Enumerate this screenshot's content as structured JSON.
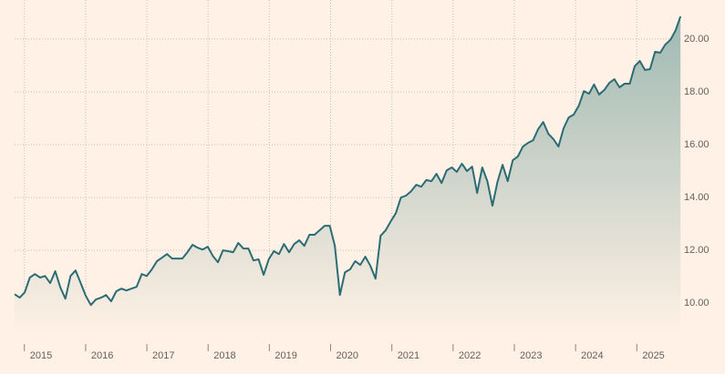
{
  "chart_data": {
    "type": "area",
    "color": "#2b6c74",
    "grid": true,
    "x": [
      2014.84,
      2014.923,
      2015.006,
      2015.089,
      2015.172,
      2015.255,
      2015.338,
      2015.421,
      2015.504,
      2015.587,
      2015.67,
      2015.753,
      2015.836,
      2015.919,
      2016.002,
      2016.085,
      2016.168,
      2016.251,
      2016.334,
      2016.417,
      2016.5,
      2016.583,
      2016.666,
      2016.749,
      2016.832,
      2016.915,
      2016.998,
      2017.081,
      2017.164,
      2017.247,
      2017.33,
      2017.413,
      2017.496,
      2017.579,
      2017.662,
      2017.745,
      2017.828,
      2017.911,
      2017.994,
      2018.077,
      2018.16,
      2018.243,
      2018.326,
      2018.409,
      2018.492,
      2018.575,
      2018.658,
      2018.741,
      2018.824,
      2018.907,
      2018.99,
      2019.073,
      2019.156,
      2019.239,
      2019.322,
      2019.405,
      2019.488,
      2019.571,
      2019.654,
      2019.737,
      2019.82,
      2019.903,
      2019.986,
      2020.069,
      2020.152,
      2020.235,
      2020.318,
      2020.401,
      2020.484,
      2020.567,
      2020.65,
      2020.733,
      2020.816,
      2020.899,
      2020.982,
      2021.065,
      2021.148,
      2021.231,
      2021.314,
      2021.397,
      2021.48,
      2021.563,
      2021.646,
      2021.729,
      2021.812,
      2021.895,
      2021.978,
      2022.061,
      2022.144,
      2022.227,
      2022.31,
      2022.393,
      2022.476,
      2022.559,
      2022.642,
      2022.725,
      2022.808,
      2022.891,
      2022.974,
      2023.057,
      2023.14,
      2023.223,
      2023.306,
      2023.389,
      2023.472,
      2023.555,
      2023.638,
      2023.721,
      2023.804,
      2023.887,
      2023.97,
      2024.053,
      2024.136,
      2024.219,
      2024.302,
      2024.385,
      2024.468,
      2024.551,
      2024.634,
      2024.717,
      2024.8,
      2024.883,
      2024.966,
      2025.049,
      2025.132,
      2025.215,
      2025.298,
      2025.381,
      2025.464,
      2025.547,
      2025.63,
      2025.713
    ],
    "values": [
      10.34,
      10.21,
      10.41,
      10.97,
      11.1,
      10.97,
      11.03,
      10.76,
      11.21,
      10.59,
      10.17,
      11.03,
      11.24,
      10.76,
      10.28,
      9.93,
      10.14,
      10.21,
      10.31,
      10.07,
      10.45,
      10.55,
      10.48,
      10.55,
      10.62,
      11.1,
      11.03,
      11.28,
      11.59,
      11.72,
      11.86,
      11.69,
      11.69,
      11.69,
      11.93,
      12.21,
      12.1,
      12.03,
      12.14,
      11.79,
      11.55,
      12.0,
      11.97,
      11.93,
      12.28,
      12.07,
      12.07,
      11.62,
      11.66,
      11.07,
      11.66,
      11.97,
      11.86,
      12.24,
      11.93,
      12.24,
      12.38,
      12.17,
      12.59,
      12.59,
      12.76,
      12.93,
      12.93,
      12.17,
      10.31,
      11.17,
      11.28,
      11.59,
      11.45,
      11.76,
      11.41,
      10.93,
      12.55,
      12.76,
      13.1,
      13.41,
      14.0,
      14.07,
      14.24,
      14.48,
      14.41,
      14.66,
      14.62,
      14.9,
      14.55,
      15.03,
      15.14,
      14.97,
      15.28,
      15.0,
      15.17,
      14.17,
      15.14,
      14.62,
      13.69,
      14.59,
      15.24,
      14.62,
      15.41,
      15.55,
      15.93,
      16.07,
      16.17,
      16.59,
      16.86,
      16.41,
      16.21,
      15.93,
      16.62,
      17.03,
      17.14,
      17.48,
      18.03,
      17.93,
      18.28,
      17.9,
      18.07,
      18.34,
      18.48,
      18.17,
      18.31,
      18.31,
      18.97,
      19.17,
      18.83,
      18.86,
      19.52,
      19.48,
      19.79,
      19.97,
      20.31,
      20.86
    ],
    "xlim": [
      2014.84,
      2025.71
    ],
    "xticks": [
      2015,
      2016,
      2017,
      2018,
      2019,
      2020,
      2021,
      2022,
      2023,
      2024,
      2025
    ],
    "ylim": [
      8.8,
      21.1
    ],
    "yticks": [
      {
        "value": 10,
        "label": "10.00"
      },
      {
        "value": 12,
        "label": "12.00"
      },
      {
        "value": 14,
        "label": "14.00"
      },
      {
        "value": 16,
        "label": "16.00"
      },
      {
        "value": 18,
        "label": "18.00"
      },
      {
        "value": 20,
        "label": "20.00"
      }
    ]
  }
}
